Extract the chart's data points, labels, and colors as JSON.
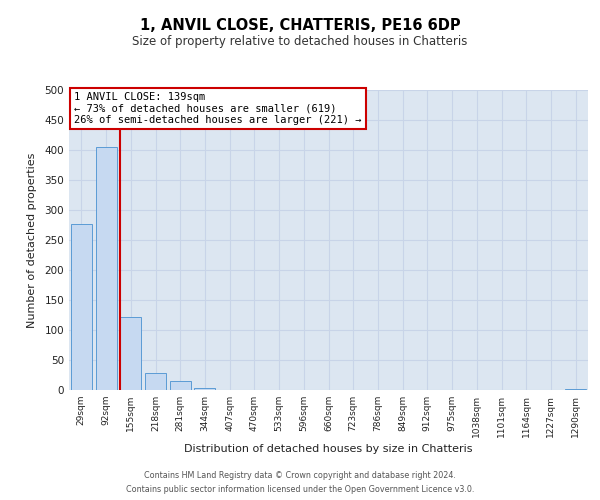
{
  "title": "1, ANVIL CLOSE, CHATTERIS, PE16 6DP",
  "subtitle": "Size of property relative to detached houses in Chatteris",
  "xlabel": "Distribution of detached houses by size in Chatteris",
  "ylabel": "Number of detached properties",
  "bar_labels": [
    "29sqm",
    "92sqm",
    "155sqm",
    "218sqm",
    "281sqm",
    "344sqm",
    "407sqm",
    "470sqm",
    "533sqm",
    "596sqm",
    "660sqm",
    "723sqm",
    "786sqm",
    "849sqm",
    "912sqm",
    "975sqm",
    "1038sqm",
    "1101sqm",
    "1164sqm",
    "1227sqm",
    "1290sqm"
  ],
  "bar_values": [
    277,
    405,
    122,
    29,
    15,
    3,
    0,
    0,
    0,
    0,
    0,
    0,
    0,
    0,
    0,
    0,
    0,
    0,
    0,
    0,
    2
  ],
  "bar_color": "#c6d9f1",
  "bar_edgecolor": "#5b9bd5",
  "annotation_line1": "1 ANVIL CLOSE: 139sqm",
  "annotation_line2": "← 73% of detached houses are smaller (619)",
  "annotation_line3": "26% of semi-detached houses are larger (221) →",
  "annotation_box_facecolor": "#ffffff",
  "annotation_box_edgecolor": "#cc0000",
  "vline_x": 1.55,
  "vline_color": "#cc0000",
  "ylim": [
    0,
    500
  ],
  "yticks": [
    0,
    50,
    100,
    150,
    200,
    250,
    300,
    350,
    400,
    450,
    500
  ],
  "grid_color": "#c8d4e8",
  "bg_color": "#dce6f1",
  "footer_line1": "Contains HM Land Registry data © Crown copyright and database right 2024.",
  "footer_line2": "Contains public sector information licensed under the Open Government Licence v3.0."
}
